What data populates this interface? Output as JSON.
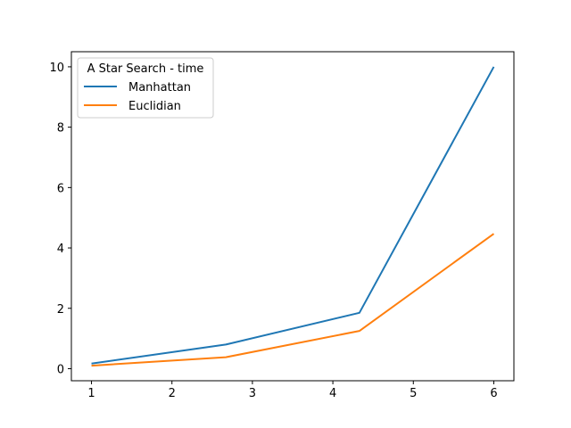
{
  "chart_data": {
    "type": "line",
    "title": "",
    "xlabel": "",
    "ylabel": "",
    "xlim": [
      0.75,
      6.25
    ],
    "ylim": [
      -0.4,
      10.5
    ],
    "xticks": [
      1,
      2,
      3,
      4,
      5,
      6
    ],
    "yticks": [
      0,
      2,
      4,
      6,
      8,
      10
    ],
    "grid": false,
    "legend": {
      "title": "A Star Search - time",
      "placement": "upper-left"
    },
    "series": [
      {
        "name": "Manhattan",
        "color": "#1f77b4",
        "x": [
          1,
          2.67,
          4.33,
          6
        ],
        "y": [
          0.17,
          0.8,
          1.85,
          10.0
        ]
      },
      {
        "name": "Euclidian",
        "color": "#ff7f0e",
        "x": [
          1,
          2.67,
          4.33,
          6
        ],
        "y": [
          0.1,
          0.38,
          1.25,
          4.47
        ]
      }
    ]
  }
}
